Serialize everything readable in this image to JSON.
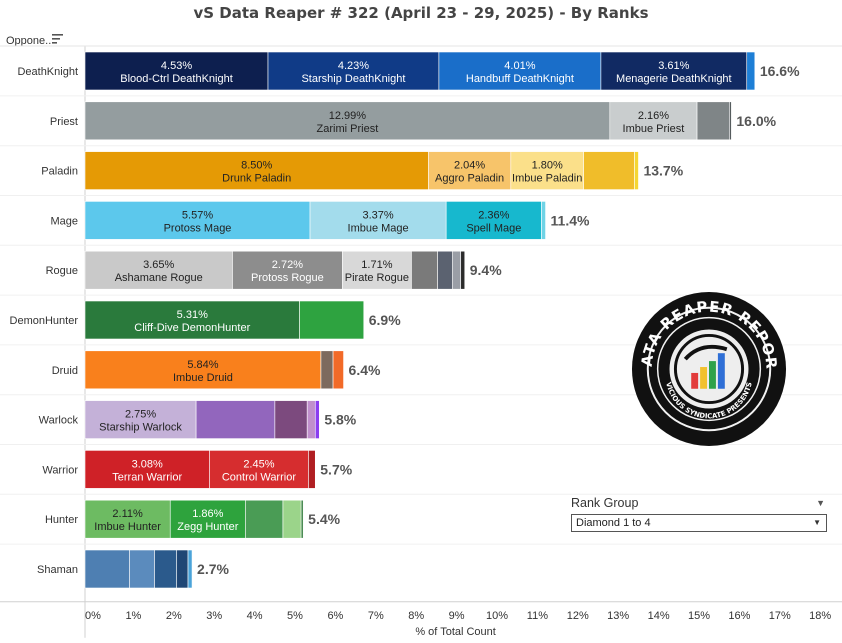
{
  "title": "vS Data Reaper #  322 (April 23 - 29, 2025) - By Ranks",
  "header": {
    "row_header_label": "Oppone..",
    "sort_icon": "sort-icon"
  },
  "rank_filter": {
    "label": "Rank Group",
    "selected": "Diamond 1 to 4"
  },
  "logo": {
    "text_top": "DATA REAPER REPORT",
    "text_bottom": "VICIOUS SYNDICATE PRESENTS"
  },
  "chart_data": {
    "type": "bar",
    "orientation": "horizontal",
    "stacked": true,
    "xlabel": "% of Total Count",
    "xlim": [
      0,
      18
    ],
    "xticks": [
      "0%",
      "1%",
      "2%",
      "3%",
      "4%",
      "5%",
      "6%",
      "7%",
      "8%",
      "9%",
      "10%",
      "11%",
      "12%",
      "13%",
      "14%",
      "15%",
      "16%",
      "17%",
      "18%"
    ],
    "rows": [
      {
        "class": "DeathKnight",
        "total_label": "16.6%",
        "segments": [
          {
            "value": 4.53,
            "pct": "4.53%",
            "name": "Blood-Ctrl DeathKnight",
            "color": "#0d1f4f",
            "text_color": "#ffffff"
          },
          {
            "value": 4.23,
            "pct": "4.23%",
            "name": "Starship DeathKnight",
            "color": "#103b87",
            "text_color": "#ffffff"
          },
          {
            "value": 4.01,
            "pct": "4.01%",
            "name": "Handbuff DeathKnight",
            "color": "#1a6ec9",
            "text_color": "#ffffff"
          },
          {
            "value": 3.61,
            "pct": "3.61%",
            "name": "Menagerie DeathKnight",
            "color": "#112a63",
            "text_color": "#ffffff"
          },
          {
            "value": 0.2,
            "pct": "",
            "name": "",
            "color": "#1e7fd6",
            "text_color": "#ffffff"
          }
        ]
      },
      {
        "class": "Priest",
        "total_label": "16.0%",
        "segments": [
          {
            "value": 12.99,
            "pct": "12.99%",
            "name": "Zarimi Priest",
            "color": "#949d9f",
            "text_color": "#222222"
          },
          {
            "value": 2.16,
            "pct": "2.16%",
            "name": "Imbue Priest",
            "color": "#c9cdce",
            "text_color": "#222222"
          },
          {
            "value": 0.8,
            "pct": "",
            "name": "",
            "color": "#7f8587",
            "text_color": "#222222"
          },
          {
            "value": 0.05,
            "pct": "",
            "name": "",
            "color": "#555b5d",
            "text_color": "#222222"
          }
        ]
      },
      {
        "class": "Paladin",
        "total_label": "13.7%",
        "segments": [
          {
            "value": 8.5,
            "pct": "8.50%",
            "name": "Drunk Paladin",
            "color": "#e59a05",
            "text_color": "#222222"
          },
          {
            "value": 2.04,
            "pct": "2.04%",
            "name": "Aggro Paladin",
            "color": "#f7c46a",
            "text_color": "#222222"
          },
          {
            "value": 1.8,
            "pct": "1.80%",
            "name": "Imbue Paladin",
            "color": "#fbe08a",
            "text_color": "#222222"
          },
          {
            "value": 1.26,
            "pct": "",
            "name": "",
            "color": "#f0bd2a",
            "text_color": "#222222"
          },
          {
            "value": 0.1,
            "pct": "",
            "name": "",
            "color": "#f5d633",
            "text_color": "#222222"
          }
        ]
      },
      {
        "class": "Mage",
        "total_label": "11.4%",
        "segments": [
          {
            "value": 5.57,
            "pct": "5.57%",
            "name": "Protoss Mage",
            "color": "#5cc8ec",
            "text_color": "#222222"
          },
          {
            "value": 3.37,
            "pct": "3.37%",
            "name": "Imbue Mage",
            "color": "#a3dcec",
            "text_color": "#222222"
          },
          {
            "value": 2.36,
            "pct": "2.36%",
            "name": "Spell Mage",
            "color": "#17b8ce",
            "text_color": "#222222"
          },
          {
            "value": 0.1,
            "pct": "",
            "name": "",
            "color": "#6fd3e6",
            "text_color": "#222222"
          }
        ]
      },
      {
        "class": "Rogue",
        "total_label": "9.4%",
        "segments": [
          {
            "value": 3.65,
            "pct": "3.65%",
            "name": "Ashamane Rogue",
            "color": "#c9c9c9",
            "text_color": "#222222"
          },
          {
            "value": 2.72,
            "pct": "2.72%",
            "name": "Protoss Rogue",
            "color": "#8d8d8d",
            "text_color": "#ffffff"
          },
          {
            "value": 1.71,
            "pct": "1.71%",
            "name": "Pirate Rogue",
            "color": "#d8d8d8",
            "text_color": "#222222"
          },
          {
            "value": 0.65,
            "pct": "",
            "name": "",
            "color": "#7a7a7a",
            "text_color": "#222222"
          },
          {
            "value": 0.37,
            "pct": "",
            "name": "",
            "color": "#5b6270",
            "text_color": "#222222"
          },
          {
            "value": 0.2,
            "pct": "",
            "name": "",
            "color": "#9a9ea6",
            "text_color": "#222222"
          },
          {
            "value": 0.1,
            "pct": "",
            "name": "",
            "color": "#2b2b2b",
            "text_color": "#222222"
          }
        ]
      },
      {
        "class": "DemonHunter",
        "total_label": "6.9%",
        "segments": [
          {
            "value": 5.31,
            "pct": "5.31%",
            "name": "Cliff-Dive DemonHunter",
            "color": "#2a7a3c",
            "text_color": "#ffffff"
          },
          {
            "value": 1.59,
            "pct": "",
            "name": "",
            "color": "#2ea340",
            "text_color": "#ffffff"
          }
        ]
      },
      {
        "class": "Druid",
        "total_label": "6.4%",
        "segments": [
          {
            "value": 5.84,
            "pct": "5.84%",
            "name": "Imbue Druid",
            "color": "#f9801c",
            "text_color": "#222222"
          },
          {
            "value": 0.3,
            "pct": "",
            "name": "",
            "color": "#7d6a5e",
            "text_color": "#222222"
          },
          {
            "value": 0.26,
            "pct": "",
            "name": "",
            "color": "#f26a28",
            "text_color": "#222222"
          }
        ]
      },
      {
        "class": "Warlock",
        "total_label": "5.8%",
        "segments": [
          {
            "value": 2.75,
            "pct": "2.75%",
            "name": "Starship Warlock",
            "color": "#c4b1d8",
            "text_color": "#222222"
          },
          {
            "value": 1.95,
            "pct": "",
            "name": "",
            "color": "#9266bd",
            "text_color": "#222222"
          },
          {
            "value": 0.8,
            "pct": "",
            "name": "",
            "color": "#7c4a7e",
            "text_color": "#222222"
          },
          {
            "value": 0.2,
            "pct": "",
            "name": "",
            "color": "#c08fcc",
            "text_color": "#222222"
          },
          {
            "value": 0.1,
            "pct": "",
            "name": "",
            "color": "#8b3df0",
            "text_color": "#222222"
          }
        ]
      },
      {
        "class": "Warrior",
        "total_label": "5.7%",
        "segments": [
          {
            "value": 3.08,
            "pct": "3.08%",
            "name": "Terran Warrior",
            "color": "#cf2127",
            "text_color": "#ffffff"
          },
          {
            "value": 2.45,
            "pct": "2.45%",
            "name": "Control Warrior",
            "color": "#d62d2f",
            "text_color": "#ffffff"
          },
          {
            "value": 0.17,
            "pct": "",
            "name": "",
            "color": "#b01e22",
            "text_color": "#ffffff"
          }
        ]
      },
      {
        "class": "Hunter",
        "total_label": "5.4%",
        "segments": [
          {
            "value": 2.11,
            "pct": "2.11%",
            "name": "Imbue Hunter",
            "color": "#6dbb62",
            "text_color": "#222222"
          },
          {
            "value": 1.86,
            "pct": "1.86%",
            "name": "Zegg Hunter",
            "color": "#2ea33d",
            "text_color": "#ffffff"
          },
          {
            "value": 0.93,
            "pct": "",
            "name": "",
            "color": "#4a9c55",
            "text_color": "#222222"
          },
          {
            "value": 0.45,
            "pct": "",
            "name": "",
            "color": "#9bd48a",
            "text_color": "#222222"
          },
          {
            "value": 0.05,
            "pct": "",
            "name": "",
            "color": "#2f7a38",
            "text_color": "#222222"
          }
        ]
      },
      {
        "class": "Shaman",
        "total_label": "2.7%",
        "segments": [
          {
            "value": 1.1,
            "pct": "",
            "name": "",
            "color": "#4e7fb2",
            "text_color": "#ffffff"
          },
          {
            "value": 0.62,
            "pct": "",
            "name": "",
            "color": "#5b8bbd",
            "text_color": "#ffffff"
          },
          {
            "value": 0.55,
            "pct": "",
            "name": "",
            "color": "#2b5a8c",
            "text_color": "#ffffff"
          },
          {
            "value": 0.28,
            "pct": "",
            "name": "",
            "color": "#1f4675",
            "text_color": "#ffffff"
          },
          {
            "value": 0.1,
            "pct": "",
            "name": "",
            "color": "#4aa3d9",
            "text_color": "#ffffff"
          }
        ]
      }
    ]
  }
}
